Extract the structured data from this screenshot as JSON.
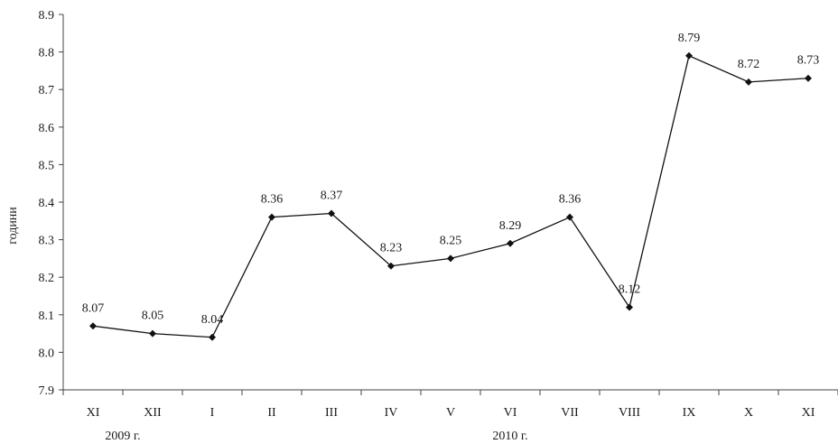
{
  "chart_data": {
    "type": "line",
    "title": "",
    "xlabel": "",
    "ylabel": "години",
    "ylim": [
      7.9,
      8.9
    ],
    "yticks": [
      "7.9",
      "8.0",
      "8.1",
      "8.2",
      "8.3",
      "8.4",
      "8.5",
      "8.6",
      "8.7",
      "8.8",
      "8.9"
    ],
    "categories": [
      "XI",
      "XII",
      "I",
      "II",
      "III",
      "IV",
      "V",
      "VI",
      "VII",
      "VIII",
      "IX",
      "X",
      "XI"
    ],
    "year_labels": [
      {
        "text": "2009 г.",
        "category_index": 0.5
      },
      {
        "text": "2010 г.",
        "category_index": 7
      }
    ],
    "series": [
      {
        "values": [
          8.07,
          8.05,
          8.04,
          8.36,
          8.37,
          8.23,
          8.25,
          8.29,
          8.36,
          8.12,
          8.79,
          8.72,
          8.73
        ],
        "labels": [
          "8.07",
          "8.05",
          "8.04",
          "8.36",
          "8.37",
          "8.23",
          "8.25",
          "8.29",
          "8.36",
          "8.12",
          "8.79",
          "8.72",
          "8.73"
        ],
        "color": "#111111"
      }
    ],
    "grid": false,
    "legend": "none"
  }
}
